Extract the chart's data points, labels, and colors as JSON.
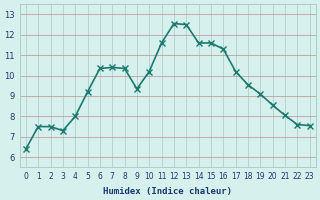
{
  "x": [
    0,
    1,
    2,
    3,
    4,
    5,
    6,
    7,
    8,
    9,
    10,
    11,
    12,
    13,
    14,
    15,
    16,
    17,
    18,
    19,
    20,
    21,
    22,
    23
  ],
  "y": [
    6.4,
    7.5,
    7.5,
    7.3,
    8.0,
    9.2,
    10.35,
    10.4,
    10.35,
    9.35,
    10.2,
    11.6,
    12.55,
    12.5,
    11.6,
    11.6,
    11.3,
    10.2,
    9.55,
    9.1,
    8.55,
    8.05,
    7.6,
    7.55
  ],
  "line_color": "#1a7a6e",
  "marker": "x",
  "marker_color": "#1a7a6e",
  "bg_color": "#d6f0ee",
  "grid_color_v": "#a8c8c4",
  "grid_color_h": "#c09090",
  "xlabel": "Humidex (Indice chaleur)",
  "xlim": [
    -0.5,
    23.5
  ],
  "ylim": [
    5.5,
    13.5
  ],
  "yticks": [
    6,
    7,
    8,
    9,
    10,
    11,
    12,
    13
  ],
  "xticks": [
    0,
    1,
    2,
    3,
    4,
    5,
    6,
    7,
    8,
    9,
    10,
    11,
    12,
    13,
    14,
    15,
    16,
    17,
    18,
    19,
    20,
    21,
    22,
    23
  ],
  "tick_color": "#1a3a6e",
  "font_color": "#1a3a6e",
  "linewidth": 1.2,
  "markersize": 4,
  "markeredgewidth": 1.0
}
